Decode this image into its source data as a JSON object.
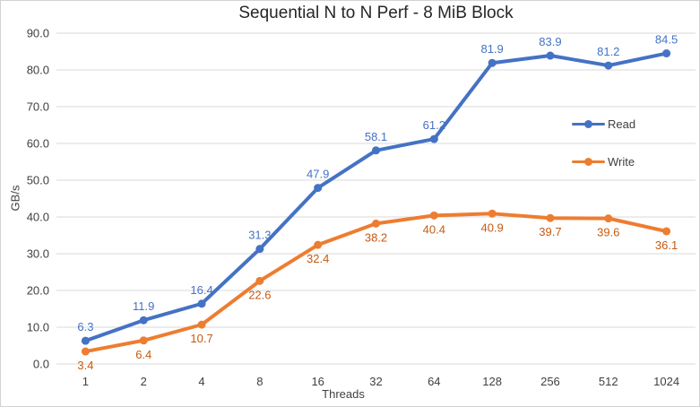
{
  "chart_data": {
    "type": "line",
    "title": "Sequential N to N Perf - 8 MiB Block",
    "xlabel": "Threads",
    "ylabel": "GB/s",
    "categories": [
      "1",
      "2",
      "4",
      "8",
      "16",
      "32",
      "64",
      "128",
      "256",
      "512",
      "1024"
    ],
    "series": [
      {
        "name": "Read",
        "color": "#4472C4",
        "label_color": "#4472C4",
        "label_position": "above",
        "values": [
          6.3,
          11.9,
          16.4,
          31.3,
          47.9,
          58.1,
          61.2,
          81.9,
          83.9,
          81.2,
          84.5
        ]
      },
      {
        "name": "Write",
        "color": "#ED7D31",
        "label_color": "#C55A11",
        "label_position": "below",
        "values": [
          3.4,
          6.4,
          10.7,
          22.6,
          32.4,
          38.2,
          40.4,
          40.9,
          39.7,
          39.6,
          36.1
        ]
      }
    ],
    "ylim": [
      0,
      90
    ],
    "yticks": [
      "0.0",
      "10.0",
      "20.0",
      "30.0",
      "40.0",
      "50.0",
      "60.0",
      "70.0",
      "80.0",
      "90.0"
    ],
    "grid": "horizontal",
    "legend_position": "middle-right",
    "colors": {
      "grid": "#D9D9D9",
      "axis_text": "#404040",
      "title_text": "#262626",
      "background": "#FFFFFF",
      "border": "#D2D2D2"
    }
  }
}
